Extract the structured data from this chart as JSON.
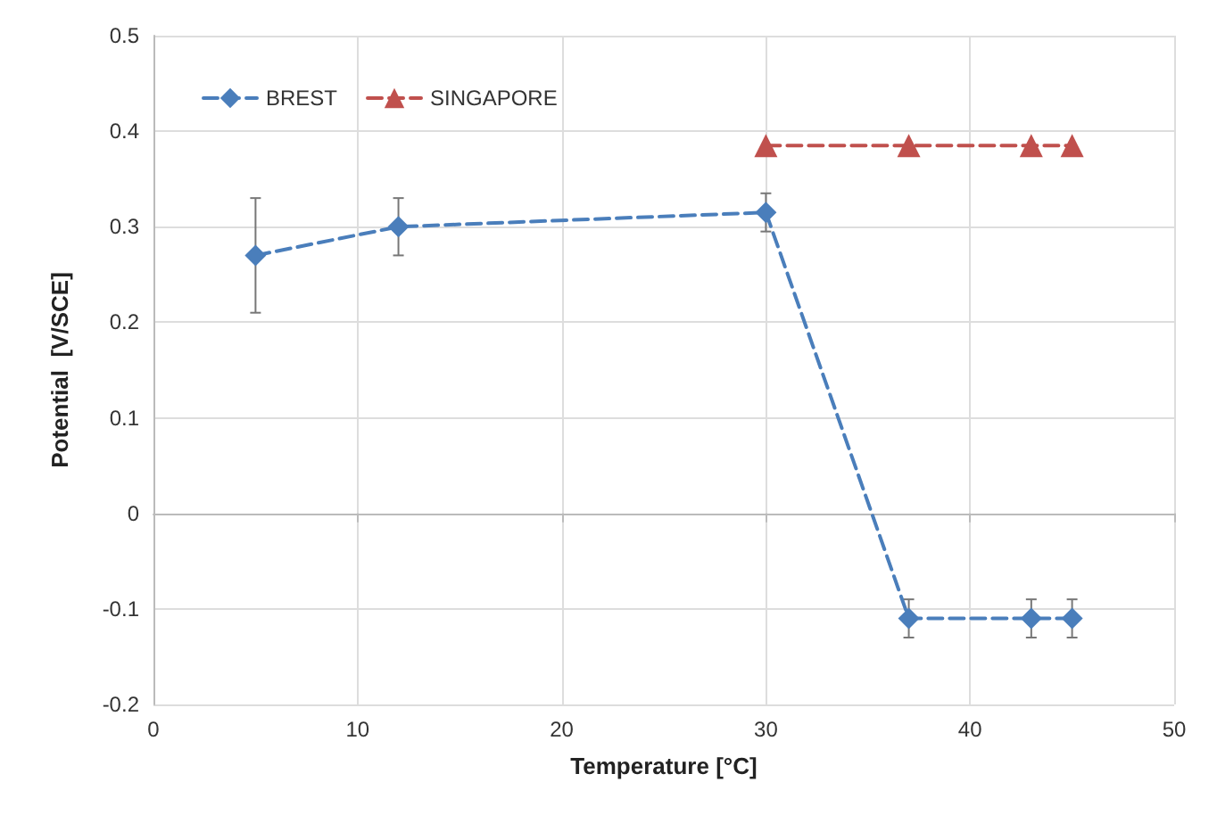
{
  "chart_data": {
    "type": "line",
    "xlabel": "Temperature [°C]",
    "ylabel": "Potential  [V/SCE]",
    "xlim": [
      0,
      50
    ],
    "xticks": [
      0,
      10,
      20,
      30,
      40,
      50
    ],
    "ylim": [
      -0.2,
      0.5
    ],
    "yticks": [
      -0.2,
      -0.1,
      0,
      0.1,
      0.2,
      0.3,
      0.4,
      0.5
    ],
    "grid": true,
    "legend": "top left",
    "line_style": "dashed",
    "series": [
      {
        "name": "BREST",
        "color": "#4a7ebb",
        "marker": "diamond",
        "x": [
          5,
          12,
          30,
          37,
          43,
          45
        ],
        "values": [
          0.27,
          0.3,
          0.315,
          -0.11,
          -0.11,
          -0.11
        ],
        "errors": [
          0.06,
          0.03,
          0.02,
          0.02,
          0.02,
          0.02
        ]
      },
      {
        "name": "SINGAPORE",
        "color": "#c0504d",
        "marker": "triangle",
        "x": [
          30,
          37,
          43,
          45
        ],
        "values": [
          0.385,
          0.385,
          0.385,
          0.385
        ]
      }
    ]
  }
}
